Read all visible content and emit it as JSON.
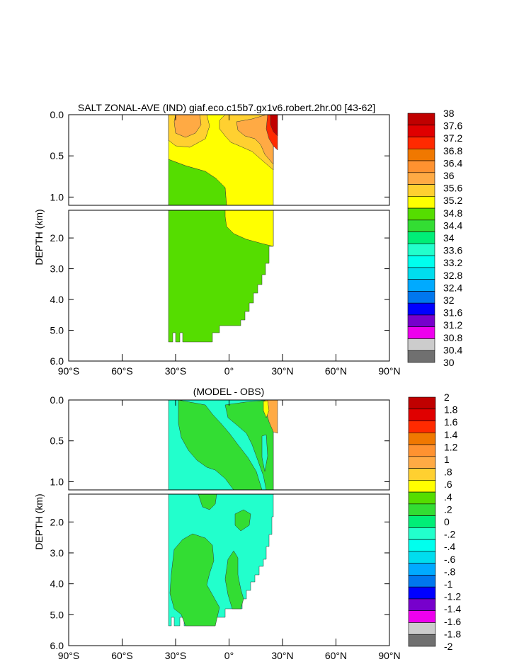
{
  "chart_data": [
    {
      "type": "heatmap",
      "title": "SALT ZONAL-AVE (IND) giaf.eco.c15b7.gx1v6.robert.2hr.00 [43-62]",
      "ylabel": "DEPTH (km)",
      "x_tick_labels": [
        "90°S",
        "60°S",
        "30°S",
        "0°",
        "30°N",
        "60°N",
        "90°N"
      ],
      "x_ticks": [
        -90,
        -60,
        -30,
        0,
        30,
        60,
        90
      ],
      "upper_y_tick_labels": [
        "0.0",
        "0.5",
        "1.0"
      ],
      "upper_y_ticks": [
        0.0,
        0.5,
        1.0
      ],
      "upper_ylim": [
        0.0,
        1.1
      ],
      "lower_y_tick_labels": [
        "2.0",
        "3.0",
        "4.0",
        "5.0",
        "6.0"
      ],
      "lower_y_ticks": [
        2.0,
        3.0,
        4.0,
        5.0,
        6.0
      ],
      "lower_ylim": [
        1.1,
        6.0
      ],
      "xlim": [
        -90,
        90
      ],
      "data_lat_range": [
        -34,
        26
      ],
      "colorbar_labels": [
        "38",
        "37.6",
        "37.2",
        "36.8",
        "36.4",
        "36",
        "35.6",
        "35.2",
        "34.8",
        "34.4",
        "34",
        "33.6",
        "33.2",
        "32.8",
        "32.4",
        "32",
        "31.6",
        "31.2",
        "30.8",
        "30.4",
        "30"
      ],
      "colorbar_colors": [
        "#c00000",
        "#e00000",
        "#ff2a00",
        "#f07800",
        "#ff9230",
        "#ffaa44",
        "#ffd030",
        "#ffff00",
        "#55dd00",
        "#33dd33",
        "#00ee77",
        "#22ffcc",
        "#00ffee",
        "#00ddee",
        "#00aaff",
        "#0077ee",
        "#0000ff",
        "#7700cc",
        "#ee00ee",
        "#cccccc",
        "#707070"
      ]
    },
    {
      "type": "heatmap",
      "title": "(MODEL - OBS)",
      "ylabel": "DEPTH (km)",
      "x_tick_labels": [
        "90°S",
        "60°S",
        "30°S",
        "0°",
        "30°N",
        "60°N",
        "90°N"
      ],
      "x_ticks": [
        -90,
        -60,
        -30,
        0,
        30,
        60,
        90
      ],
      "upper_y_tick_labels": [
        "0.0",
        "0.5",
        "1.0"
      ],
      "upper_y_ticks": [
        0.0,
        0.5,
        1.0
      ],
      "upper_ylim": [
        0.0,
        1.1
      ],
      "lower_y_tick_labels": [
        "2.0",
        "3.0",
        "4.0",
        "5.0",
        "6.0"
      ],
      "lower_y_ticks": [
        2.0,
        3.0,
        4.0,
        5.0,
        6.0
      ],
      "lower_ylim": [
        1.1,
        6.0
      ],
      "xlim": [
        -90,
        90
      ],
      "data_lat_range": [
        -34,
        26
      ],
      "colorbar_labels": [
        "2",
        "1.8",
        "1.6",
        "1.4",
        "1.2",
        "1",
        ".8",
        ".6",
        ".4",
        ".2",
        "0",
        "-.2",
        "-.4",
        "-.6",
        "-.8",
        "-1",
        "-1.2",
        "-1.4",
        "-1.6",
        "-1.8",
        "-2"
      ],
      "colorbar_colors": [
        "#c00000",
        "#e00000",
        "#ff2a00",
        "#f07800",
        "#ff9230",
        "#ffaa44",
        "#ffd030",
        "#ffff00",
        "#55dd00",
        "#33dd33",
        "#00ee77",
        "#22ffcc",
        "#00ffee",
        "#00ddee",
        "#00aaff",
        "#0077ee",
        "#0000ff",
        "#7700cc",
        "#ee00ee",
        "#cccccc",
        "#707070"
      ]
    }
  ]
}
